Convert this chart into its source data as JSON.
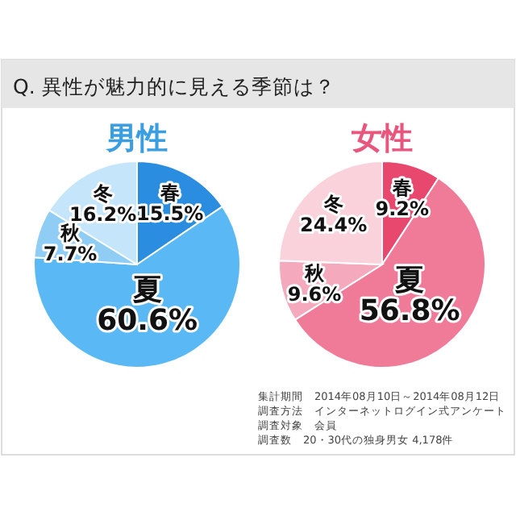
{
  "chart_data": [
    {
      "type": "pie",
      "title": "男性",
      "annotations": [
        "Q. 異性が魅力的に見える季節は？"
      ],
      "categories": [
        "春",
        "夏",
        "秋",
        "冬"
      ],
      "values": [
        15.5,
        60.6,
        7.7,
        16.2
      ],
      "colors": [
        "#2a8de0",
        "#5ab8f5",
        "#8fcdf5",
        "#c5e6fa"
      ],
      "value_labels": [
        "15.5%",
        "60.6%",
        "7.7%",
        "16.2%"
      ]
    },
    {
      "type": "pie",
      "title": "女性",
      "annotations": [
        "集計期間　2014年08月10日～2014年08月12日",
        "調査方法　インターネットログイン式アンケート",
        "調査対象　会員",
        "調査数　20・30代の独身男女 4,178件"
      ],
      "categories": [
        "春",
        "夏",
        "秋",
        "冬"
      ],
      "values": [
        9.2,
        56.8,
        9.6,
        24.4
      ],
      "colors": [
        "#e8476e",
        "#f07b98",
        "#f4a9bd",
        "#f9d2dc"
      ],
      "value_labels": [
        "9.2%",
        "56.8%",
        "9.6%",
        "24.4%"
      ]
    }
  ]
}
